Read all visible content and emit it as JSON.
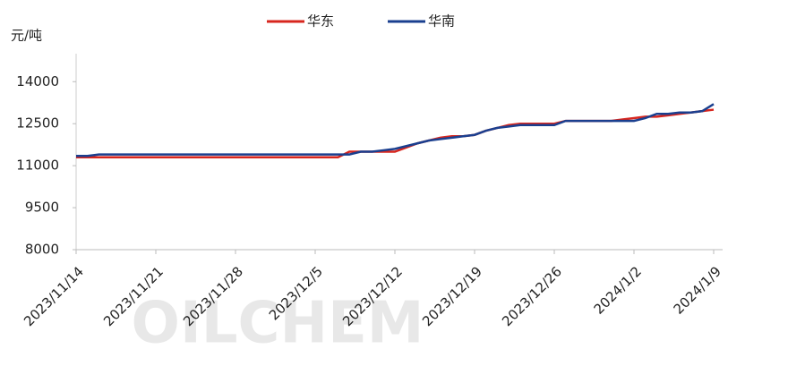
{
  "chart_data": {
    "type": "line",
    "y_axis_label": "元/吨",
    "watermark": "OILCHEM",
    "categories": [
      "2023/11/14",
      null,
      null,
      null,
      null,
      null,
      null,
      "2023/11/21",
      null,
      null,
      null,
      null,
      null,
      null,
      "2023/11/28",
      null,
      null,
      null,
      null,
      null,
      null,
      "2023/12/5",
      null,
      null,
      null,
      null,
      null,
      null,
      "2023/12/12",
      null,
      null,
      null,
      null,
      null,
      null,
      "2023/12/19",
      null,
      null,
      null,
      null,
      null,
      null,
      "2023/12/26",
      null,
      null,
      null,
      null,
      null,
      null,
      "2024/1/2",
      null,
      null,
      null,
      null,
      null,
      null,
      "2024/1/9"
    ],
    "series": [
      {
        "name": "华东",
        "color": "#d7261e",
        "values": [
          11300,
          11300,
          11300,
          11300,
          11300,
          11300,
          11300,
          11300,
          11300,
          11300,
          11300,
          11300,
          11300,
          11300,
          11300,
          11300,
          11300,
          11300,
          11300,
          11300,
          11300,
          11300,
          11300,
          11300,
          11500,
          11500,
          11500,
          11500,
          11500,
          11650,
          11800,
          11900,
          12000,
          12050,
          12050,
          12100,
          12250,
          12350,
          12450,
          12500,
          12500,
          12500,
          12500,
          12600,
          12600,
          12600,
          12600,
          12600,
          12650,
          12700,
          12750,
          12750,
          12800,
          12850,
          12900,
          12950,
          13000
        ]
      },
      {
        "name": "华南",
        "color": "#1a3f8f",
        "values": [
          11350,
          11350,
          11400,
          11400,
          11400,
          11400,
          11400,
          11400,
          11400,
          11400,
          11400,
          11400,
          11400,
          11400,
          11400,
          11400,
          11400,
          11400,
          11400,
          11400,
          11400,
          11400,
          11400,
          11400,
          11400,
          11500,
          11500,
          11550,
          11600,
          11700,
          11800,
          11900,
          11950,
          12000,
          12050,
          12100,
          12250,
          12350,
          12400,
          12450,
          12450,
          12450,
          12450,
          12600,
          12600,
          12600,
          12600,
          12600,
          12600,
          12600,
          12700,
          12850,
          12850,
          12900,
          12900,
          12950,
          13200
        ]
      }
    ],
    "ylim": [
      8000,
      15000
    ],
    "yticks": [
      8000,
      9500,
      11000,
      12500,
      14000
    ]
  }
}
